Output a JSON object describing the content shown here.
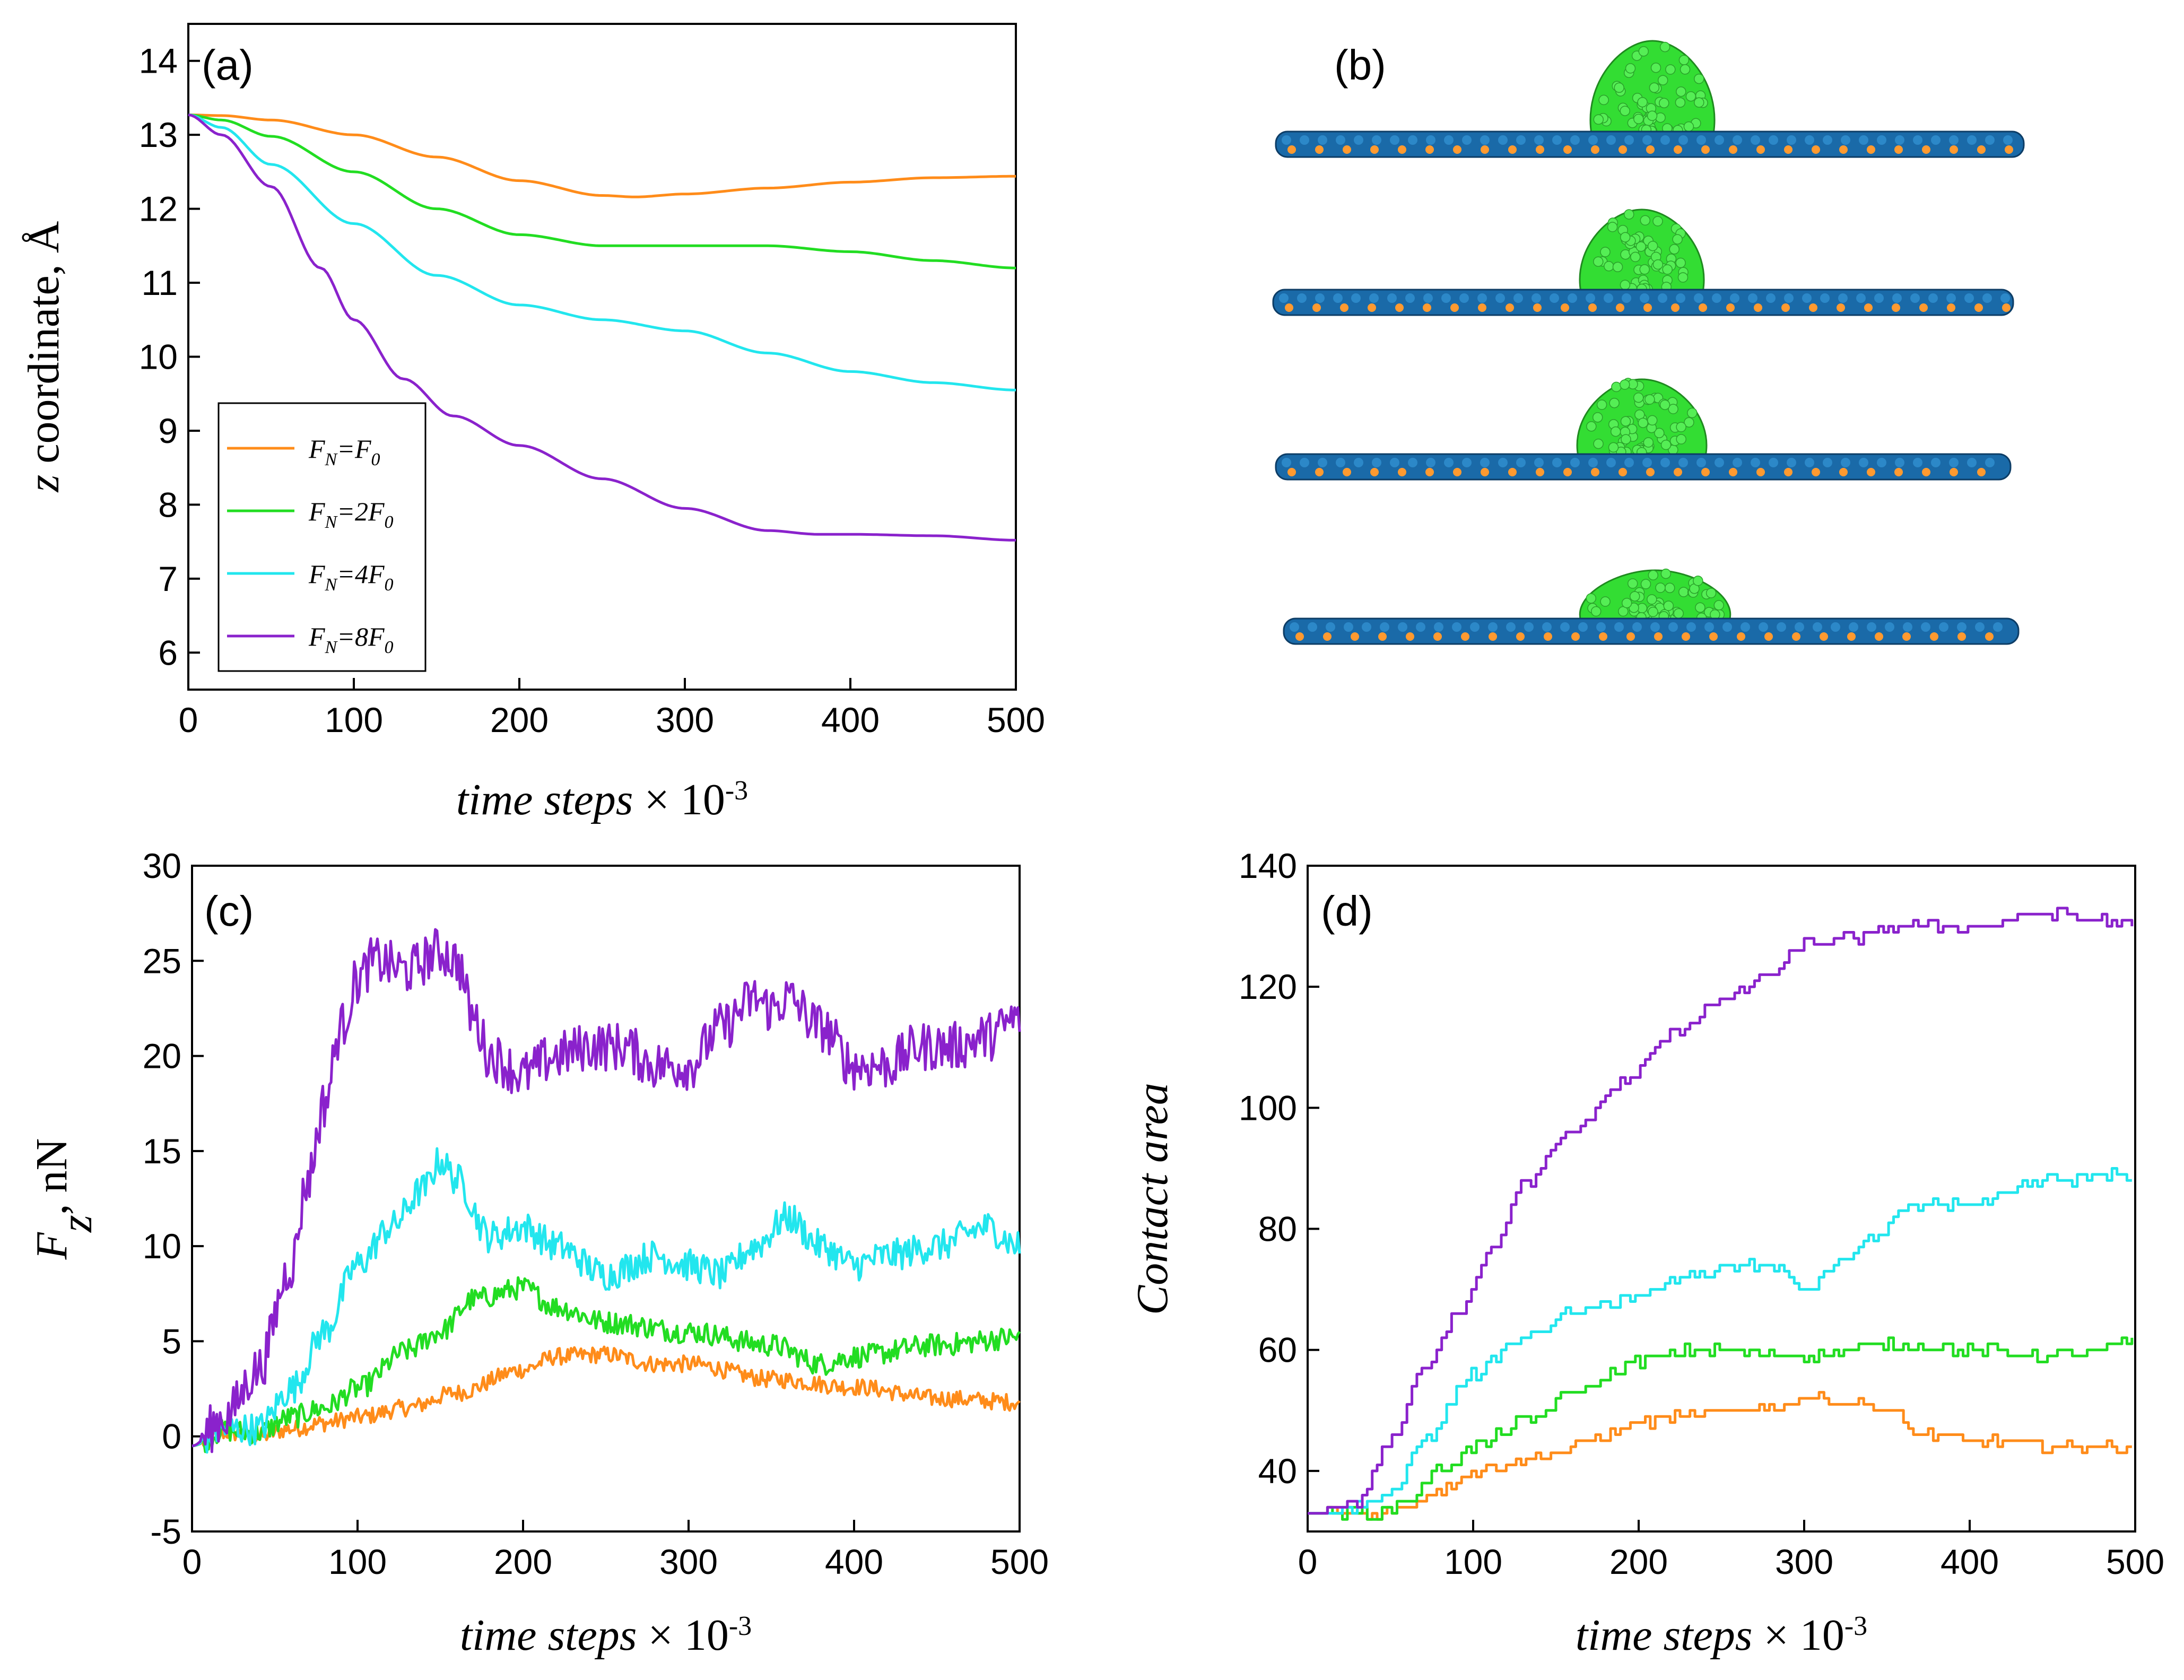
{
  "colors": {
    "F0": "#ff8c1a",
    "2F0": "#22dd22",
    "4F0": "#22e6ee",
    "8F0": "#8a22cc",
    "substrate": "#1a6aa8",
    "substrate_dot": "#ff9a30",
    "droplet": "#33dd33"
  },
  "chart_data": [
    {
      "panel": "(a)",
      "type": "line",
      "xlabel": "time steps × 10⁻³",
      "ylabel": "z coordinate, Å",
      "xlim": [
        0,
        500
      ],
      "ylim": [
        5.5,
        14.5
      ],
      "xticks": [
        0,
        100,
        200,
        300,
        400,
        500
      ],
      "yticks": [
        6,
        7,
        8,
        9,
        10,
        11,
        12,
        13,
        14
      ],
      "legend": "bottom-left",
      "series": [
        {
          "name": "F_N=F_0",
          "color": "#ff8c1a",
          "x": [
            0,
            20,
            50,
            100,
            150,
            200,
            250,
            270,
            300,
            350,
            400,
            450,
            500
          ],
          "y": [
            13.27,
            13.26,
            13.2,
            13.0,
            12.7,
            12.38,
            12.18,
            12.16,
            12.2,
            12.28,
            12.36,
            12.42,
            12.44
          ]
        },
        {
          "name": "F_N=2F_0",
          "color": "#22dd22",
          "x": [
            0,
            20,
            50,
            100,
            150,
            200,
            250,
            300,
            350,
            400,
            450,
            500
          ],
          "y": [
            13.27,
            13.2,
            12.98,
            12.5,
            12.0,
            11.65,
            11.5,
            11.5,
            11.5,
            11.42,
            11.3,
            11.2
          ]
        },
        {
          "name": "F_N=4F_0",
          "color": "#22e6ee",
          "x": [
            0,
            20,
            50,
            100,
            150,
            200,
            250,
            300,
            350,
            400,
            450,
            500
          ],
          "y": [
            13.27,
            13.1,
            12.6,
            11.8,
            11.1,
            10.7,
            10.5,
            10.35,
            10.05,
            9.8,
            9.65,
            9.55
          ]
        },
        {
          "name": "F_N=8F_0",
          "color": "#8a22cc",
          "x": [
            0,
            20,
            50,
            80,
            100,
            130,
            160,
            200,
            250,
            300,
            350,
            380,
            400,
            450,
            500
          ],
          "y": [
            13.27,
            13.0,
            12.3,
            11.2,
            10.5,
            9.7,
            9.2,
            8.8,
            8.35,
            7.95,
            7.65,
            7.6,
            7.6,
            7.58,
            7.52
          ]
        }
      ],
      "legend_entries": [
        {
          "pre": "F",
          "sub1": "N",
          "mid": "=",
          "coef": "",
          "post": "F",
          "sub2": "0",
          "color": "#ff8c1a"
        },
        {
          "pre": "F",
          "sub1": "N",
          "mid": "=",
          "coef": "2",
          "post": "F",
          "sub2": "0",
          "color": "#22dd22"
        },
        {
          "pre": "F",
          "sub1": "N",
          "mid": "=",
          "coef": "4",
          "post": "F",
          "sub2": "0",
          "color": "#22e6ee"
        },
        {
          "pre": "F",
          "sub1": "N",
          "mid": "=",
          "coef": "8",
          "post": "F",
          "sub2": "0",
          "color": "#8a22cc"
        }
      ]
    },
    {
      "panel": "(c)",
      "type": "line",
      "xlabel": "time steps × 10⁻³",
      "ylabel": "F_z, nN",
      "xlim": [
        0,
        500
      ],
      "ylim": [
        -5,
        30
      ],
      "xticks": [
        0,
        100,
        200,
        300,
        400,
        500
      ],
      "yticks": [
        -5,
        0,
        5,
        10,
        15,
        20,
        25,
        30
      ],
      "series": [
        {
          "name": "F_N=F_0",
          "color": "#ff8c1a",
          "x": [
            0,
            20,
            40,
            60,
            80,
            100,
            130,
            160,
            200,
            220,
            250,
            280,
            300,
            350,
            400,
            450,
            500
          ],
          "y": [
            -0.5,
            0.2,
            0.0,
            0.4,
            0.7,
            1.0,
            1.5,
            2.3,
            3.5,
            4.2,
            4.3,
            3.8,
            3.8,
            3.0,
            2.6,
            2.0,
            1.8
          ]
        },
        {
          "name": "F_N=2F_0",
          "color": "#22dd22",
          "x": [
            0,
            20,
            40,
            60,
            80,
            100,
            130,
            150,
            170,
            200,
            220,
            250,
            300,
            350,
            380,
            400,
            450,
            500
          ],
          "y": [
            -0.5,
            0.3,
            0.2,
            1.0,
            1.5,
            2.5,
            4.5,
            5.5,
            7.2,
            7.8,
            6.8,
            6.0,
            5.5,
            4.8,
            3.8,
            4.2,
            4.8,
            5.2
          ]
        },
        {
          "name": "F_N=4F_0",
          "color": "#22e6ee",
          "x": [
            0,
            20,
            40,
            60,
            80,
            100,
            120,
            140,
            150,
            160,
            180,
            200,
            220,
            250,
            280,
            300,
            320,
            340,
            360,
            380,
            400,
            420,
            450,
            480,
            500
          ],
          "y": [
            -0.5,
            0.4,
            0.4,
            2.5,
            5.5,
            9.0,
            11.0,
            13.0,
            14.5,
            13.5,
            10.5,
            11.0,
            10.0,
            8.5,
            9.5,
            9.0,
            8.5,
            10.0,
            11.5,
            10.0,
            9.0,
            9.5,
            10.0,
            11.0,
            10.0
          ]
        },
        {
          "name": "F_N=8F_0",
          "color": "#8a22cc",
          "x": [
            0,
            20,
            40,
            60,
            70,
            80,
            90,
            100,
            110,
            130,
            150,
            160,
            170,
            180,
            200,
            220,
            240,
            260,
            280,
            300,
            320,
            340,
            350,
            360,
            380,
            400,
            420,
            440,
            460,
            480,
            500
          ],
          "y": [
            -0.5,
            1.0,
            3.5,
            9.0,
            13.5,
            17.5,
            21.5,
            24.0,
            25.0,
            24.5,
            25.5,
            25.0,
            22.0,
            20.0,
            19.0,
            20.0,
            20.5,
            20.5,
            19.5,
            19.5,
            21.5,
            23.0,
            22.5,
            23.0,
            21.5,
            19.5,
            19.5,
            20.5,
            20.5,
            21.0,
            22.0
          ]
        }
      ]
    },
    {
      "panel": "(d)",
      "type": "line",
      "xlabel": "time steps × 10⁻³",
      "ylabel": "Contact area",
      "xlim": [
        0,
        500
      ],
      "ylim": [
        30,
        140
      ],
      "xticks": [
        0,
        100,
        200,
        300,
        400,
        500
      ],
      "yticks": [
        40,
        60,
        80,
        100,
        120,
        140
      ],
      "series": [
        {
          "name": "F_N=F_0",
          "color": "#ff8c1a",
          "x": [
            0,
            40,
            60,
            80,
            100,
            120,
            150,
            180,
            200,
            230,
            260,
            290,
            300,
            330,
            350,
            370,
            400,
            450,
            500
          ],
          "y": [
            33,
            33,
            34,
            37,
            40,
            41,
            43,
            46,
            48,
            49,
            50,
            51,
            52,
            51,
            50,
            46,
            45,
            44,
            44
          ]
        },
        {
          "name": "F_N=2F_0",
          "color": "#22dd22",
          "x": [
            0,
            40,
            60,
            80,
            100,
            130,
            160,
            200,
            230,
            250,
            280,
            300,
            350,
            400,
            450,
            500
          ],
          "y": [
            33,
            33,
            35,
            40,
            44,
            48,
            53,
            58,
            60,
            60,
            59,
            59,
            61,
            60,
            59,
            61
          ]
        },
        {
          "name": "F_N=4F_0",
          "color": "#22e6ee",
          "x": [
            0,
            30,
            50,
            70,
            100,
            130,
            160,
            200,
            230,
            260,
            280,
            300,
            320,
            340,
            360,
            380,
            400,
            450,
            500
          ],
          "y": [
            33,
            34,
            36,
            45,
            56,
            62,
            66,
            69,
            72,
            74,
            74,
            70,
            74,
            78,
            83,
            84,
            84,
            88,
            89
          ]
        },
        {
          "name": "F_N=8F_0",
          "color": "#8a22cc",
          "x": [
            0,
            30,
            50,
            70,
            90,
            110,
            130,
            160,
            190,
            220,
            250,
            280,
            300,
            330,
            360,
            400,
            450,
            480,
            500
          ],
          "y": [
            33,
            35,
            45,
            57,
            66,
            76,
            87,
            96,
            104,
            112,
            118,
            122,
            127,
            128,
            130,
            130,
            132,
            131,
            130
          ]
        }
      ]
    }
  ],
  "panels": {
    "a": {
      "letter": "(a)"
    },
    "b": {
      "letter": "(b)"
    },
    "c": {
      "letter": "(c)"
    },
    "d": {
      "letter": "(d)"
    }
  },
  "axis_text": {
    "a_ylabel_var": "z",
    "a_ylabel_rest": " coordinate, Å",
    "c_ylabel_var": "F",
    "c_ylabel_sub": "z",
    "c_ylabel_rest": ", nN",
    "d_ylabel": "Contact area",
    "xlabel_it": "time steps",
    "xlabel_times": " × 10",
    "xlabel_exp": "-3"
  }
}
